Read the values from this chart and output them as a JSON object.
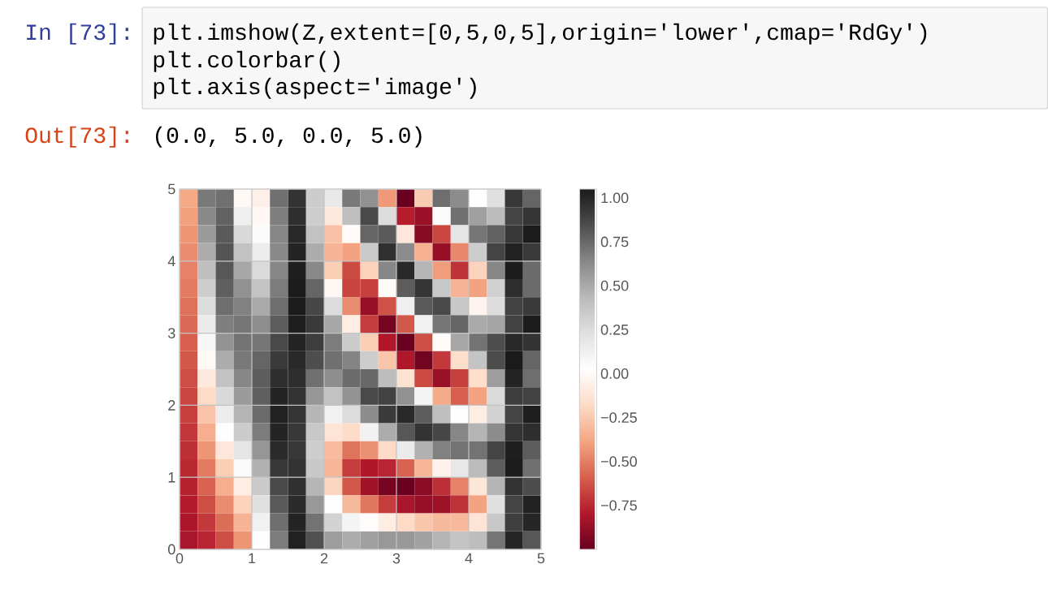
{
  "chart_data": {
    "type": "heatmap",
    "x": [
      0.125,
      0.375,
      0.625,
      0.875,
      1.125,
      1.375,
      1.625,
      1.875,
      2.125,
      2.375,
      2.625,
      2.875,
      3.125,
      3.375,
      3.625,
      3.875,
      4.125,
      4.375,
      4.625,
      4.875
    ],
    "y": [
      4.875,
      4.625,
      4.375,
      4.125,
      3.875,
      3.625,
      3.375,
      3.125,
      2.875,
      2.625,
      2.375,
      2.125,
      1.875,
      1.625,
      1.375,
      1.125,
      0.875,
      0.625,
      0.375,
      0.125
    ],
    "cells": [
      [
        -0.37,
        0.69,
        0.72,
        -0.01,
        -0.06,
        0.72,
        0.95,
        0.34,
        0.17,
        0.69,
        0.6,
        -0.42,
        -0.99,
        -0.24,
        0.73,
        0.62,
        0.02,
        0.23,
        0.93,
        0.76
      ],
      [
        -0.4,
        0.63,
        0.77,
        0.13,
        -0.02,
        0.67,
        0.97,
        0.33,
        -0.1,
        0.41,
        0.86,
        0.25,
        -0.78,
        -0.86,
        0.06,
        0.72,
        0.54,
        0.43,
        0.88,
        0.94
      ],
      [
        -0.43,
        0.56,
        0.8,
        0.27,
        0.05,
        0.64,
        0.99,
        0.39,
        -0.28,
        0.0,
        0.76,
        0.8,
        -0.11,
        -0.91,
        -0.66,
        0.2,
        0.7,
        0.77,
        0.93,
        1.04
      ],
      [
        -0.46,
        0.49,
        0.82,
        0.39,
        0.15,
        0.63,
        1.01,
        0.49,
        -0.33,
        -0.39,
        0.35,
        0.96,
        0.62,
        -0.34,
        -0.87,
        -0.47,
        0.33,
        0.88,
        1.02,
        0.92
      ],
      [
        -0.49,
        0.41,
        0.81,
        0.51,
        0.26,
        0.64,
        1.03,
        0.63,
        -0.23,
        -0.65,
        -0.21,
        0.64,
        0.99,
        0.45,
        -0.41,
        -0.72,
        -0.21,
        0.64,
        1.04,
        0.74
      ],
      [
        -0.51,
        0.33,
        0.78,
        0.6,
        0.38,
        0.68,
        1.04,
        0.76,
        -0.02,
        -0.67,
        -0.68,
        0.0,
        0.79,
        0.94,
        0.36,
        -0.33,
        -0.39,
        0.31,
        0.97,
        0.74
      ],
      [
        -0.54,
        0.25,
        0.73,
        0.66,
        0.5,
        0.73,
        1.04,
        0.87,
        0.25,
        -0.46,
        -0.87,
        -0.63,
        0.13,
        0.8,
        0.86,
        0.36,
        -0.04,
        0.25,
        0.89,
        0.92
      ],
      [
        -0.56,
        0.16,
        0.67,
        0.7,
        0.61,
        0.79,
        1.03,
        0.92,
        0.51,
        -0.08,
        -0.69,
        -0.96,
        -0.61,
        0.12,
        0.7,
        0.76,
        0.5,
        0.52,
        0.89,
        1.04
      ],
      [
        -0.59,
        0.08,
        0.59,
        0.71,
        0.7,
        0.86,
        1.01,
        0.91,
        0.68,
        0.34,
        -0.23,
        -0.8,
        -0.99,
        -0.64,
        0.0,
        0.51,
        0.71,
        0.84,
        0.99,
        0.95
      ],
      [
        -0.61,
        -0.01,
        0.49,
        0.69,
        0.76,
        0.92,
        0.99,
        0.84,
        0.72,
        0.65,
        0.33,
        -0.26,
        -0.8,
        -0.97,
        -0.7,
        -0.16,
        0.38,
        0.85,
        1.05,
        0.76
      ],
      [
        -0.64,
        -0.1,
        0.39,
        0.64,
        0.79,
        0.97,
        0.97,
        0.72,
        0.61,
        0.74,
        0.75,
        0.42,
        -0.14,
        -0.65,
        -0.86,
        -0.68,
        -0.16,
        0.55,
        1.01,
        0.73
      ],
      [
        -0.66,
        -0.18,
        0.27,
        0.56,
        0.78,
        1.01,
        0.95,
        0.58,
        0.39,
        0.59,
        0.86,
        0.89,
        0.6,
        0.1,
        -0.36,
        -0.59,
        -0.39,
        0.26,
        0.91,
        0.89
      ],
      [
        -0.68,
        -0.27,
        0.15,
        0.46,
        0.74,
        1.02,
        0.94,
        0.45,
        0.12,
        0.25,
        0.62,
        0.92,
        0.99,
        0.79,
        0.41,
        0.03,
        -0.08,
        0.3,
        0.88,
        1.03
      ],
      [
        -0.71,
        -0.35,
        0.02,
        0.34,
        0.68,
        1.01,
        0.93,
        0.36,
        -0.13,
        -0.17,
        0.11,
        0.49,
        0.81,
        0.95,
        0.87,
        0.64,
        0.46,
        0.62,
        0.94,
        0.97
      ],
      [
        -0.73,
        -0.43,
        -0.11,
        0.2,
        0.58,
        0.98,
        0.93,
        0.33,
        -0.3,
        -0.53,
        -0.44,
        -0.18,
        0.16,
        0.47,
        0.66,
        0.71,
        0.71,
        0.88,
        1.03,
        0.79
      ],
      [
        -0.75,
        -0.51,
        -0.23,
        0.06,
        0.47,
        0.93,
        0.95,
        0.36,
        -0.32,
        -0.69,
        -0.8,
        -0.76,
        -0.58,
        -0.32,
        -0.05,
        0.18,
        0.43,
        0.79,
        1.04,
        0.72
      ],
      [
        -0.77,
        -0.58,
        -0.35,
        -0.08,
        0.35,
        0.86,
        0.96,
        0.45,
        -0.2,
        -0.61,
        -0.84,
        -0.96,
        -0.99,
        -0.9,
        -0.73,
        -0.49,
        -0.12,
        0.46,
        0.95,
        0.85
      ],
      [
        -0.79,
        -0.64,
        -0.46,
        -0.21,
        0.23,
        0.8,
        0.98,
        0.57,
        0.03,
        -0.31,
        -0.52,
        -0.69,
        -0.82,
        -0.87,
        -0.85,
        -0.72,
        -0.39,
        0.23,
        0.88,
        1.02
      ],
      [
        -0.81,
        -0.7,
        -0.55,
        -0.33,
        0.12,
        0.73,
        1.01,
        0.71,
        0.3,
        0.1,
        0.01,
        -0.08,
        -0.18,
        -0.26,
        -0.31,
        -0.31,
        -0.13,
        0.36,
        0.9,
        1.0
      ],
      [
        -0.82,
        -0.76,
        -0.64,
        -0.43,
        0.03,
        0.68,
        1.02,
        0.83,
        0.55,
        0.49,
        0.54,
        0.57,
        0.57,
        0.53,
        0.46,
        0.38,
        0.42,
        0.7,
        1.0,
        0.81
      ]
    ],
    "xlim": [
      0,
      5
    ],
    "ylim": [
      0,
      5
    ],
    "xticks": [
      0,
      1,
      2,
      3,
      4,
      5
    ],
    "yticks": [
      0,
      1,
      2,
      3,
      4,
      5
    ],
    "clim": [
      -1.0,
      1.05
    ],
    "cticks": [
      {
        "value": 1.0,
        "label": "1.00"
      },
      {
        "value": 0.75,
        "label": "0.75"
      },
      {
        "value": 0.5,
        "label": "0.50"
      },
      {
        "value": 0.25,
        "label": "0.25"
      },
      {
        "value": 0,
        "label": "0.00"
      },
      {
        "value": -0.25,
        "label": "−0.25"
      },
      {
        "value": -0.5,
        "label": "−0.50"
      },
      {
        "value": -0.75,
        "label": "−0.75"
      }
    ],
    "grid": true,
    "annotations": [
      "In [73]:",
      "plt.imshow(Z,extent=[0,5,0,5],origin='lower',cmap='RdGy')",
      "plt.colorbar()",
      "plt.axis(aspect='image')",
      "Out[73]:",
      "(0.0, 5.0, 0.0, 5.0)"
    ]
  }
}
